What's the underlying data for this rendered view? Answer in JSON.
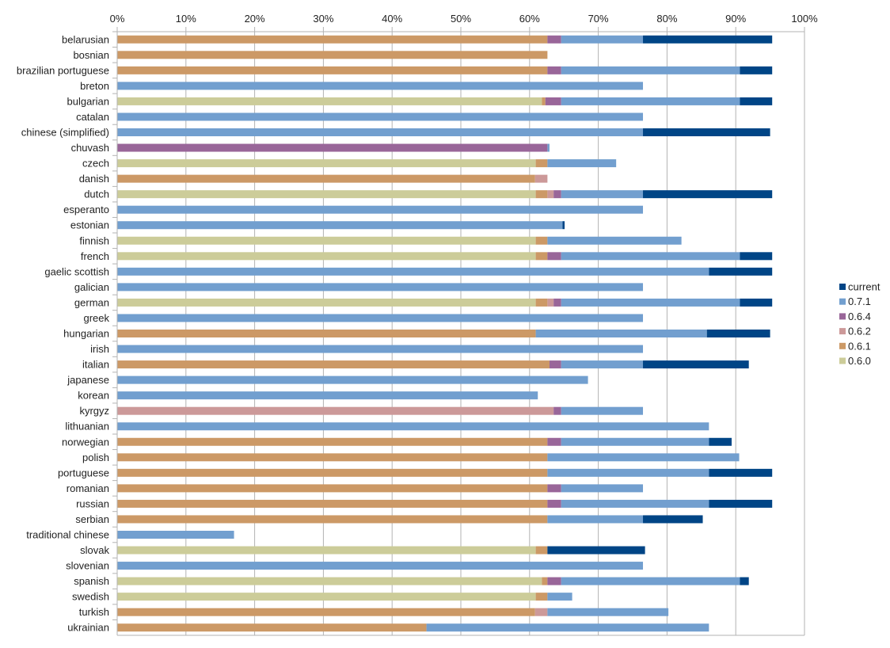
{
  "chart_data": {
    "type": "bar",
    "orientation": "horizontal",
    "stacked": true,
    "title": "",
    "xlabel": "",
    "ylabel": "",
    "xlim": [
      0,
      100
    ],
    "x_unit": "%",
    "x_ticks": [
      "0%",
      "10%",
      "20%",
      "30%",
      "40%",
      "50%",
      "60%",
      "70%",
      "80%",
      "90%",
      "100%"
    ],
    "grid": true,
    "legend_position": "right",
    "categories": [
      "belarusian",
      "bosnian",
      "brazilian portuguese",
      "breton",
      "bulgarian",
      "catalan",
      "chinese (simplified)",
      "chuvash",
      "czech",
      "danish",
      "dutch",
      "esperanto",
      "estonian",
      "finnish",
      "french",
      "gaelic scottish",
      "galician",
      "german",
      "greek",
      "hungarian",
      "irish",
      "italian",
      "japanese",
      "korean",
      "kyrgyz",
      "lithuanian",
      "norwegian",
      "polish",
      "portuguese",
      "romanian",
      "russian",
      "serbian",
      "traditional chinese",
      "slovak",
      "slovenian",
      "spanish",
      "swedish",
      "turkish",
      "ukrainian"
    ],
    "series": [
      {
        "name": "0.6.0",
        "color": "#cccc99",
        "values": [
          0,
          0,
          0,
          0,
          61.8,
          0,
          0,
          0,
          60.9,
          0,
          60.9,
          0,
          0,
          60.9,
          60.9,
          0,
          0,
          60.9,
          0,
          0,
          0,
          0,
          0,
          0,
          0,
          0,
          0,
          0,
          0,
          0,
          0,
          0,
          0,
          60.9,
          0,
          61.8,
          60.9,
          0,
          0
        ]
      },
      {
        "name": "0.6.1",
        "color": "#cc9966",
        "values": [
          62.6,
          62.6,
          62.6,
          0,
          0.5,
          0,
          0,
          0,
          1.7,
          60.8,
          1.7,
          0,
          0,
          1.7,
          1.7,
          0,
          0,
          1.7,
          0,
          60.9,
          0,
          62.9,
          0,
          0,
          0,
          0,
          62.6,
          62.6,
          62.6,
          62.6,
          62.6,
          62.6,
          0,
          1.7,
          0,
          0.8,
          1.7,
          60.8,
          45.0
        ]
      },
      {
        "name": "0.6.2",
        "color": "#cc9999",
        "values": [
          0,
          0,
          0,
          0,
          0,
          0,
          0,
          0,
          0,
          1.8,
          0.9,
          0,
          0,
          0,
          0,
          0,
          0,
          0.9,
          0,
          0,
          0,
          0,
          0,
          0,
          63.5,
          0,
          0,
          0,
          0,
          0,
          0,
          0,
          0,
          0,
          0,
          0,
          0,
          1.8,
          0
        ]
      },
      {
        "name": "0.6.4",
        "color": "#996699",
        "values": [
          2.0,
          0,
          2.0,
          0,
          2.3,
          0,
          0,
          62.6,
          0,
          0,
          1.1,
          0,
          0,
          0,
          2.0,
          0,
          0,
          1.1,
          0,
          0,
          0,
          1.7,
          0,
          0,
          1.1,
          0,
          2.0,
          0,
          0,
          2.0,
          2.0,
          0,
          0,
          0,
          0,
          2.0,
          0,
          0,
          0
        ]
      },
      {
        "name": "0.7.1",
        "color": "#729fcf",
        "values": [
          11.9,
          0,
          26.0,
          76.5,
          26.0,
          76.5,
          76.5,
          0.3,
          10.0,
          0,
          11.9,
          76.5,
          64.8,
          19.5,
          26.0,
          86.1,
          76.5,
          26.0,
          76.5,
          24.9,
          76.5,
          11.9,
          68.5,
          61.2,
          11.9,
          86.1,
          21.5,
          27.9,
          23.5,
          11.9,
          21.5,
          13.9,
          17.0,
          0,
          76.5,
          26.0,
          3.6,
          17.6,
          41.1
        ]
      },
      {
        "name": "current",
        "color": "#004586",
        "values": [
          18.8,
          0,
          4.7,
          0,
          4.7,
          0,
          18.5,
          0,
          0,
          0,
          18.8,
          0,
          0.3,
          0,
          4.7,
          9.2,
          0,
          4.7,
          0,
          9.2,
          0,
          15.4,
          0,
          0,
          0,
          0,
          3.3,
          0,
          9.2,
          0,
          9.2,
          8.7,
          0,
          14.2,
          0,
          1.3,
          0,
          0,
          0
        ]
      }
    ],
    "legend_order": [
      "current",
      "0.7.1",
      "0.6.4",
      "0.6.2",
      "0.6.1",
      "0.6.0"
    ]
  }
}
